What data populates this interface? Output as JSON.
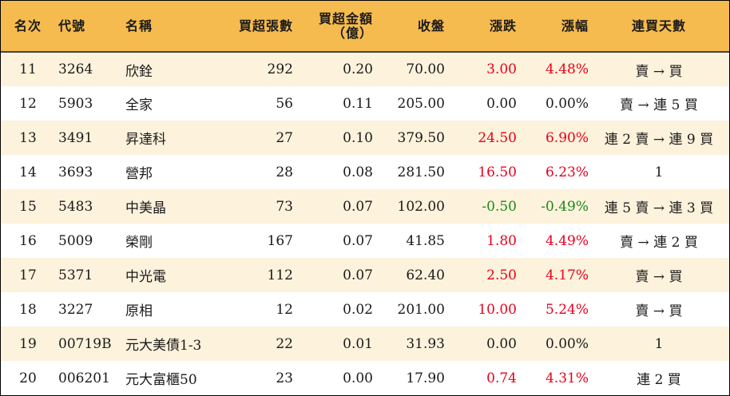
{
  "headers": {
    "rank": "名次",
    "code": "代號",
    "name": "名稱",
    "net_buy_lots": "買超張數",
    "net_buy_amount_line1": "買超金額",
    "net_buy_amount_line2": "（億）",
    "close": "收盤",
    "change": "漲跌",
    "change_pct": "漲幅",
    "consecutive_days": "連買天數"
  },
  "rows": [
    {
      "rank": "11",
      "code": "3264",
      "name": "欣銓",
      "lots": "292",
      "amount": "0.20",
      "close": "70.00",
      "change": "3.00",
      "pct": "4.48%",
      "days": "賣 → 買",
      "dir": "up"
    },
    {
      "rank": "12",
      "code": "5903",
      "name": "全家",
      "lots": "56",
      "amount": "0.11",
      "close": "205.00",
      "change": "0.00",
      "pct": "0.00%",
      "days": "賣 → 連 5 買",
      "dir": "flat"
    },
    {
      "rank": "13",
      "code": "3491",
      "name": "昇達科",
      "lots": "27",
      "amount": "0.10",
      "close": "379.50",
      "change": "24.50",
      "pct": "6.90%",
      "days": "連 2 賣 → 連 9 買",
      "dir": "up"
    },
    {
      "rank": "14",
      "code": "3693",
      "name": "營邦",
      "lots": "28",
      "amount": "0.08",
      "close": "281.50",
      "change": "16.50",
      "pct": "6.23%",
      "days": "1",
      "dir": "up"
    },
    {
      "rank": "15",
      "code": "5483",
      "name": "中美晶",
      "lots": "73",
      "amount": "0.07",
      "close": "102.00",
      "change": "-0.50",
      "pct": "-0.49%",
      "days": "連 5 賣 → 連 3 買",
      "dir": "down"
    },
    {
      "rank": "16",
      "code": "5009",
      "name": "榮剛",
      "lots": "167",
      "amount": "0.07",
      "close": "41.85",
      "change": "1.80",
      "pct": "4.49%",
      "days": "賣 → 連 2 買",
      "dir": "up"
    },
    {
      "rank": "17",
      "code": "5371",
      "name": "中光電",
      "lots": "112",
      "amount": "0.07",
      "close": "62.40",
      "change": "2.50",
      "pct": "4.17%",
      "days": "賣 → 買",
      "dir": "up"
    },
    {
      "rank": "18",
      "code": "3227",
      "name": "原相",
      "lots": "12",
      "amount": "0.02",
      "close": "201.00",
      "change": "10.00",
      "pct": "5.24%",
      "days": "賣 → 買",
      "dir": "up"
    },
    {
      "rank": "19",
      "code": "00719B",
      "name": "元大美債1-3",
      "lots": "22",
      "amount": "0.01",
      "close": "31.93",
      "change": "0.00",
      "pct": "0.00%",
      "days": "1",
      "dir": "flat"
    },
    {
      "rank": "20",
      "code": "006201",
      "name": "元大富櫃50",
      "lots": "23",
      "amount": "0.00",
      "close": "17.90",
      "change": "0.74",
      "pct": "4.31%",
      "days": "連 2 買",
      "dir": "up"
    }
  ],
  "colors": {
    "header_bg": "#f6bb4e",
    "row_alt_bg": "#fdf2dc",
    "up": "#e8001c",
    "down": "#1a8a1a"
  }
}
